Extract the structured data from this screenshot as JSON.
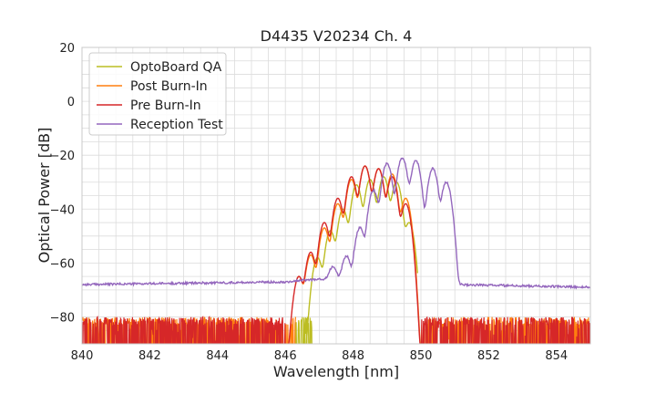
{
  "chart_data": {
    "type": "line",
    "title": "D4435 V20234 Ch. 4",
    "xlabel": "Wavelength [nm]",
    "ylabel": "Optical Power [dB]",
    "xlim": [
      840,
      855
    ],
    "ylim": [
      -90,
      20
    ],
    "xticks": [
      840,
      842,
      844,
      846,
      848,
      850,
      852,
      854
    ],
    "yticks": [
      20,
      0,
      -20,
      -40,
      -60,
      -80
    ],
    "grid": true,
    "legend_position": "top-left",
    "noise_floor": -80,
    "series": [
      {
        "name": "OptoBoard QA",
        "color": "#bcbd22",
        "signal_range": [
          846.5,
          849.9
        ],
        "noise_range": [
          846.2,
          846.8
        ],
        "peaks": [
          [
            846.95,
            -58
          ],
          [
            847.33,
            -48
          ],
          [
            847.7,
            -40
          ],
          [
            848.1,
            -31
          ],
          [
            848.5,
            -29
          ],
          [
            848.9,
            -28
          ],
          [
            849.28,
            -30
          ],
          [
            849.65,
            -45
          ]
        ]
      },
      {
        "name": "Post Burn-In",
        "color": "#ff7f0e",
        "signal_range": [
          846.3,
          850.0
        ],
        "noise_range": [
          840,
          846.3,
          850.0,
          855
        ],
        "peaks": [
          [
            846.4,
            -65
          ],
          [
            846.75,
            -57
          ],
          [
            847.15,
            -47
          ],
          [
            847.55,
            -38
          ],
          [
            847.95,
            -29
          ],
          [
            848.35,
            -24
          ],
          [
            848.75,
            -25
          ],
          [
            849.15,
            -27
          ],
          [
            849.55,
            -36
          ]
        ]
      },
      {
        "name": "Pre Burn-In",
        "color": "#d62728",
        "signal_range": [
          846.0,
          850.0
        ],
        "noise_range": [
          840,
          846.0,
          850.0,
          855
        ],
        "peaks": [
          [
            846.4,
            -65
          ],
          [
            846.75,
            -56
          ],
          [
            847.15,
            -45
          ],
          [
            847.55,
            -36
          ],
          [
            847.95,
            -28
          ],
          [
            848.35,
            -24
          ],
          [
            848.75,
            -25
          ],
          [
            849.15,
            -28
          ],
          [
            849.55,
            -38
          ]
        ]
      },
      {
        "name": "Reception Test",
        "color": "#9467bd",
        "signal_range": [
          846.9,
          851.0
        ],
        "baseline": [
          [
            840,
            -68
          ],
          [
            846,
            -67
          ],
          [
            846.9,
            -66
          ],
          [
            851.0,
            -68
          ],
          [
            855,
            -69
          ]
        ],
        "peaks": [
          [
            847.4,
            -63
          ],
          [
            847.8,
            -58
          ],
          [
            848.2,
            -47
          ],
          [
            848.6,
            -33
          ],
          [
            849.0,
            -23
          ],
          [
            849.45,
            -21
          ],
          [
            849.85,
            -22
          ],
          [
            850.35,
            -25
          ],
          [
            850.75,
            -30
          ]
        ]
      }
    ]
  }
}
